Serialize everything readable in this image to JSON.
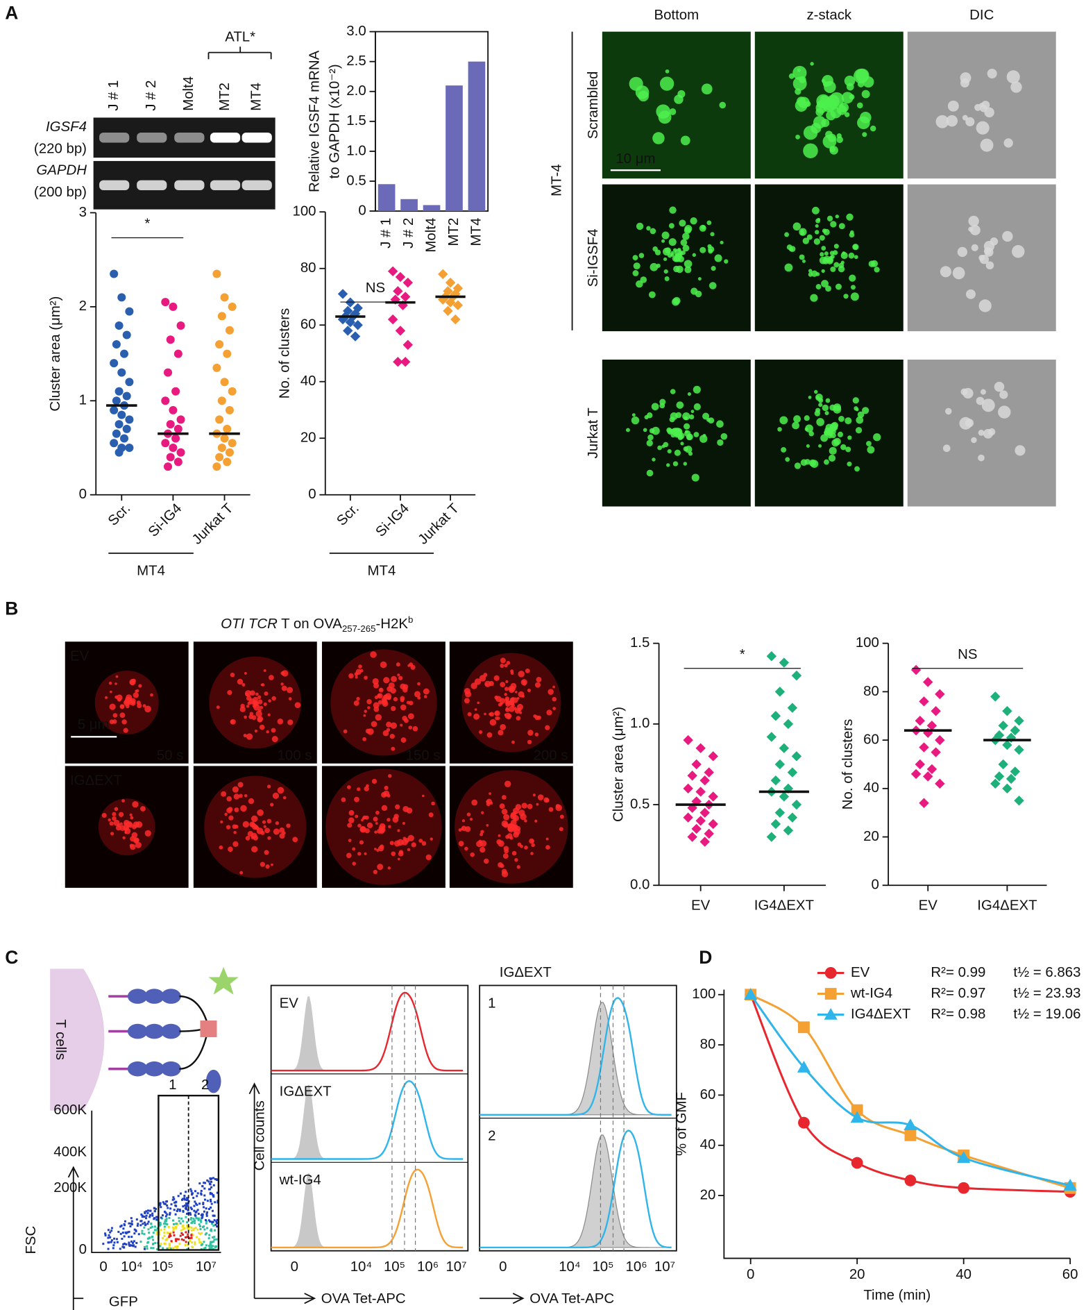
{
  "figure": {
    "A": {
      "letter": "A",
      "gel": {
        "lanes": [
          "J # 1",
          "J # 2",
          "Molt4",
          "MT2",
          "MT4"
        ],
        "group": "ATL*",
        "rows": [
          {
            "gene": "IGSF4",
            "size": "(220 bp)"
          },
          {
            "gene": "GAPDH",
            "size": "(200 bp)"
          }
        ]
      },
      "micro": {
        "columns": [
          "Bottom",
          "z-stack",
          "DIC"
        ],
        "rows": [
          "Scrambled",
          "Si-IGSF4",
          "Jurkat T"
        ],
        "group": "MT-4",
        "scale": "10 μm"
      }
    },
    "B": {
      "letter": "B",
      "title": [
        "OTI TCR",
        " T on  OVA",
        "257-265",
        "-H2K",
        "b"
      ],
      "rows": [
        "EV",
        "IGΔEXT"
      ],
      "times": [
        "50 s",
        "100 s",
        "150 s",
        "200 s"
      ],
      "scale": "5 μm"
    },
    "C": {
      "letter": "C",
      "cartoon": "T cells",
      "dot": {
        "ylabel": "FSC",
        "xlabel": "GFP",
        "yticks": [
          "600K",
          "400K",
          "200K",
          "0"
        ],
        "xticks": [
          "0",
          "10⁴",
          "10⁵",
          "10⁷"
        ],
        "gates": [
          "1",
          "2"
        ]
      },
      "hist": {
        "title": "IGΔEXT",
        "ylabel": "Cell counts",
        "xlabel": "OVA Tet-APC",
        "left": [
          "EV",
          "IGΔEXT",
          "wt-IG4"
        ],
        "right": [
          "1",
          "2"
        ],
        "xticks": [
          "0",
          "10⁴",
          "10⁵",
          "10⁶",
          "10⁷"
        ]
      }
    },
    "D": {
      "letter": "D"
    }
  },
  "chart_data": [
    {
      "type": "bar",
      "ylabel": [
        "Relative IGSF4 mRNA",
        "to GAPDH (x10⁻²)"
      ],
      "categories": [
        "J # 1",
        "J # 2",
        "Molt4",
        "MT2",
        "MT4"
      ],
      "values": [
        0.45,
        0.2,
        0.1,
        2.1,
        2.5
      ],
      "color": "#6a6ab8",
      "ylim": [
        0,
        3
      ],
      "yticks": [
        0,
        0.5,
        {
          "value": 1,
          "label": "1.0"
        },
        1.5,
        {
          "value": 2,
          "label": "2.0"
        },
        2.5,
        {
          "value": 3,
          "label": "3.0"
        }
      ]
    },
    {
      "type": "strip",
      "ylabel": "Cluster area (μm²)",
      "annotation": "*",
      "group_label": "MT4",
      "marker": "circle",
      "categories": [
        "Scr.",
        "Si-IG4",
        "Jurkat T"
      ],
      "colors": [
        "#2a5fb0",
        "#e8197f",
        "#f5a033"
      ],
      "values": [
        [
          2.35,
          2.1,
          1.95,
          1.8,
          1.7,
          1.6,
          1.5,
          1.4,
          1.3,
          1.2,
          1.1,
          1.05,
          1.0,
          0.95,
          0.9,
          0.85,
          0.8,
          0.75,
          0.7,
          0.65,
          0.6,
          0.55,
          0.5,
          0.5,
          0.45
        ],
        [
          2.05,
          2.0,
          1.8,
          1.65,
          1.5,
          1.3,
          1.1,
          1.0,
          0.9,
          0.8,
          0.75,
          0.7,
          0.65,
          0.6,
          0.55,
          0.5,
          0.45,
          0.4,
          0.35,
          0.3
        ],
        [
          2.35,
          2.1,
          2.0,
          1.9,
          1.75,
          1.6,
          1.5,
          1.35,
          1.2,
          1.1,
          1.0,
          0.9,
          0.8,
          0.7,
          0.65,
          0.6,
          0.55,
          0.5,
          0.45,
          0.4,
          0.35,
          0.3
        ]
      ],
      "medians": [
        0.95,
        0.65,
        0.65
      ],
      "ylim": [
        0,
        3
      ],
      "yticks": [
        0,
        1,
        2,
        3
      ]
    },
    {
      "type": "strip",
      "ylabel": "No. of clusters",
      "annotation": "NS",
      "group_label": "MT4",
      "marker": "diamond",
      "categories": [
        "Scr.",
        "Si-IG4",
        "Jurkat T"
      ],
      "colors": [
        "#2a5fb0",
        "#e8197f",
        "#f5a033"
      ],
      "values": [
        [
          71,
          68,
          66,
          65,
          64,
          63,
          63,
          62,
          61,
          60,
          58,
          56
        ],
        [
          79,
          77,
          75,
          72,
          70,
          69,
          67,
          62,
          58,
          53,
          47,
          47
        ],
        [
          78,
          75,
          73,
          72,
          71,
          70,
          70,
          69,
          68,
          67,
          65,
          62
        ]
      ],
      "medians": [
        63,
        68,
        70
      ],
      "ylim": [
        0,
        100
      ],
      "yticks": [
        0,
        20,
        40,
        60,
        80,
        100
      ]
    },
    {
      "type": "strip",
      "ylabel": "Cluster area (μm²)",
      "annotation": "*",
      "marker": "diamond",
      "categories": [
        "EV",
        "IG4ΔEXT"
      ],
      "colors": [
        "#e8197f",
        "#1db07a"
      ],
      "values": [
        [
          0.9,
          0.85,
          0.8,
          0.75,
          0.7,
          0.68,
          0.65,
          0.6,
          0.58,
          0.55,
          0.52,
          0.5,
          0.48,
          0.45,
          0.42,
          0.4,
          0.38,
          0.35,
          0.32,
          0.3,
          0.27
        ],
        [
          1.42,
          1.38,
          1.3,
          1.2,
          1.1,
          1.05,
          1.0,
          0.92,
          0.85,
          0.8,
          0.75,
          0.7,
          0.65,
          0.6,
          0.58,
          0.55,
          0.5,
          0.45,
          0.42,
          0.38,
          0.34,
          0.3
        ]
      ],
      "medians": [
        0.5,
        0.58
      ],
      "ylim": [
        0,
        1.5
      ],
      "yticks": [
        {
          "value": 0,
          "label": "0.0"
        },
        0.5,
        {
          "value": 1,
          "label": "1.0"
        },
        1.5
      ]
    },
    {
      "type": "strip",
      "ylabel": "No. of clusters",
      "annotation": "NS",
      "marker": "diamond",
      "categories": [
        "EV",
        "IG4ΔEXT"
      ],
      "colors": [
        "#e8197f",
        "#1db07a"
      ],
      "values": [
        [
          89,
          84,
          79,
          76,
          72,
          68,
          66,
          64,
          63,
          60,
          57,
          55,
          50,
          48,
          46,
          45,
          42,
          34
        ],
        [
          78,
          72,
          68,
          66,
          64,
          62,
          61,
          60,
          58,
          56,
          50,
          47,
          45,
          44,
          42,
          40,
          35
        ]
      ],
      "medians": [
        64,
        60
      ],
      "ylim": [
        0,
        100
      ],
      "yticks": [
        0,
        20,
        40,
        60,
        80,
        100
      ]
    },
    {
      "type": "line",
      "xlabel": "Time (min)",
      "ylabel": "% of GMF",
      "x": [
        0,
        10,
        20,
        30,
        40,
        60
      ],
      "xlim": [
        -5,
        60
      ],
      "xticks": [
        0,
        20,
        40,
        60
      ],
      "ylim": [
        -5,
        102
      ],
      "yticks": [
        20,
        40,
        60,
        80,
        100
      ],
      "series": [
        {
          "name": "EV",
          "color": "#e8262e",
          "marker": "circle",
          "values": [
            100,
            49,
            33,
            26,
            23,
            21.5
          ],
          "r2": "R²= 0.99",
          "thalf": "t½ = 6.863"
        },
        {
          "name": "wt-IG4",
          "color": "#f5a033",
          "marker": "square",
          "values": [
            100,
            87,
            54,
            44,
            36,
            23
          ],
          "r2": "R²= 0.97",
          "thalf": "t½ = 23.93"
        },
        {
          "name": "IG4ΔEXT",
          "color": "#2fb5ea",
          "marker": "triangle",
          "values": [
            100,
            71,
            51,
            48,
            35,
            24
          ],
          "r2": "R²= 0.98",
          "thalf": "t½ = 19.06"
        }
      ]
    }
  ]
}
